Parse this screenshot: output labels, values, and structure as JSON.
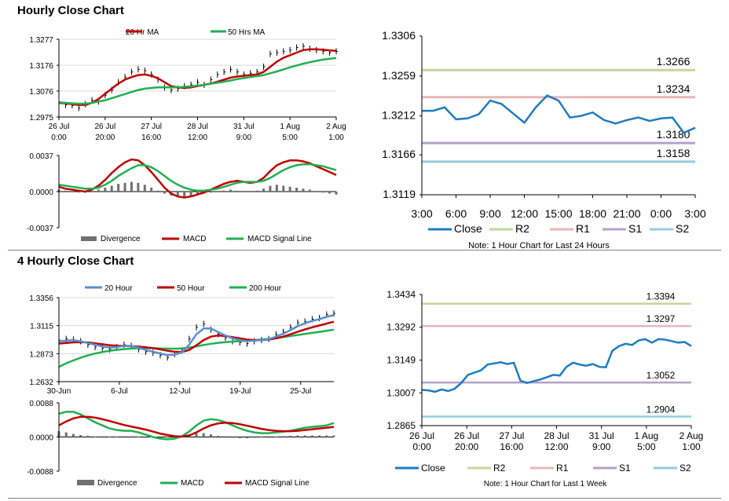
{
  "sections": {
    "hourly_title": "Hourly Close Chart",
    "four_hourly_title": "4 Hourly Close Chart"
  },
  "colors": {
    "price": "#000000",
    "ma_red": "#c00000",
    "ma_green": "#20b050",
    "ma_blue": "#5a8fd0",
    "close_line": "#1f7bbf",
    "r2": "#c3d69b",
    "r1": "#e6b8b7",
    "s1": "#b3a2c7",
    "s2": "#93cddd",
    "divergence": "#707070",
    "grid": "#d9d9d9"
  },
  "chart_data": [
    {
      "id": "hourly_price",
      "type": "line",
      "y_ticks": [
        "1.3277",
        "1.3176",
        "1.3076",
        "1.2975"
      ],
      "ylim": [
        1.2975,
        1.3277
      ],
      "x_labels": [
        [
          "26 Jul",
          "0:00"
        ],
        [
          "26 Jul",
          "20:00"
        ],
        [
          "27 Jul",
          "16:00"
        ],
        [
          "28 Jul",
          "12:00"
        ],
        [
          "31 Jul",
          "9:00"
        ],
        [
          "1 Aug",
          "5:00"
        ],
        [
          "2 Aug",
          "1:00"
        ]
      ],
      "legend": [
        "20 Hr MA",
        "50 Hrs MA"
      ],
      "series": [
        {
          "name": "Price",
          "values": [
            1.303,
            1.3022,
            1.302,
            1.301,
            1.3025,
            1.304,
            1.3035,
            1.306,
            1.308,
            1.311,
            1.313,
            1.315,
            1.316,
            1.3155,
            1.314,
            1.312,
            1.309,
            1.308,
            1.3085,
            1.3095,
            1.31,
            1.311,
            1.31,
            1.312,
            1.314,
            1.315,
            1.316,
            1.315,
            1.314,
            1.3145,
            1.315,
            1.317,
            1.322,
            1.3225,
            1.323,
            1.3235,
            1.3245,
            1.325,
            1.324,
            1.3235,
            1.323,
            1.3225,
            1.323
          ]
        },
        {
          "name": "20 Hr MA",
          "values": [
            1.303,
            1.3028,
            1.3025,
            1.3022,
            1.3022,
            1.303,
            1.3045,
            1.3065,
            1.3085,
            1.3105,
            1.312,
            1.313,
            1.3138,
            1.314,
            1.3135,
            1.3125,
            1.311,
            1.3095,
            1.309,
            1.3088,
            1.309,
            1.3095,
            1.31,
            1.3105,
            1.3112,
            1.312,
            1.3128,
            1.3132,
            1.3135,
            1.3138,
            1.314,
            1.315,
            1.317,
            1.319,
            1.3205,
            1.3215,
            1.3225,
            1.3235,
            1.3238,
            1.3238,
            1.3236,
            1.3234,
            1.3232
          ]
        },
        {
          "name": "50 Hrs MA",
          "values": [
            1.3032,
            1.303,
            1.3028,
            1.3027,
            1.3027,
            1.303,
            1.3035,
            1.304,
            1.3048,
            1.3056,
            1.3064,
            1.3072,
            1.308,
            1.3085,
            1.3088,
            1.309,
            1.309,
            1.309,
            1.309,
            1.3092,
            1.3094,
            1.3097,
            1.31,
            1.3104,
            1.3108,
            1.3112,
            1.3117,
            1.3122,
            1.3126,
            1.313,
            1.3134,
            1.3138,
            1.3145,
            1.3152,
            1.316,
            1.3168,
            1.3175,
            1.3182,
            1.3188,
            1.3193,
            1.3198,
            1.3201,
            1.3204
          ]
        }
      ]
    },
    {
      "id": "hourly_macd",
      "type": "line",
      "y_ticks": [
        "0.0037",
        "0.0000",
        "-0.0037"
      ],
      "ylim": [
        -0.0037,
        0.0037
      ],
      "legend": [
        "Divergence",
        "MACD",
        "MACD Signal Line"
      ],
      "series": [
        {
          "name": "Divergence",
          "values": [
            0.0002,
            0.0001,
            0.0,
            -0.0001,
            -0.0001,
            0.0,
            0.0002,
            0.0004,
            0.0006,
            0.0008,
            0.0009,
            0.001,
            0.0009,
            0.0007,
            0.0004,
            0.0001,
            -0.0002,
            -0.0004,
            -0.0005,
            -0.0005,
            -0.0004,
            -0.0003,
            -0.0002,
            -0.0001,
            0.0,
            0.0001,
            0.0002,
            0.0001,
            0.0,
            0.0,
            0.0001,
            0.0003,
            0.0006,
            0.0007,
            0.0006,
            0.0005,
            0.0004,
            0.0003,
            0.0002,
            0.0,
            -0.0001,
            -0.0002,
            -0.0003
          ]
        },
        {
          "name": "MACD",
          "values": [
            0.0005,
            0.0003,
            0.0002,
            0.0001,
            0.0,
            0.0002,
            0.0006,
            0.0012,
            0.0019,
            0.0025,
            0.003,
            0.0033,
            0.0032,
            0.0027,
            0.002,
            0.0012,
            0.0004,
            -0.0002,
            -0.0005,
            -0.0006,
            -0.0005,
            -0.0003,
            -0.0001,
            0.0002,
            0.0005,
            0.0008,
            0.001,
            0.0011,
            0.001,
            0.0009,
            0.001,
            0.0014,
            0.0021,
            0.0027,
            0.003,
            0.0032,
            0.0032,
            0.0031,
            0.0029,
            0.0026,
            0.0023,
            0.002,
            0.0017
          ]
        },
        {
          "name": "MACD Signal Line",
          "values": [
            0.0007,
            0.0006,
            0.0005,
            0.0004,
            0.0003,
            0.0003,
            0.0004,
            0.0007,
            0.0011,
            0.0016,
            0.002,
            0.0024,
            0.0027,
            0.0027,
            0.0025,
            0.0021,
            0.0016,
            0.0011,
            0.0007,
            0.0004,
            0.0002,
            0.0001,
            0.0001,
            0.0002,
            0.0003,
            0.0005,
            0.0007,
            0.0009,
            0.001,
            0.001,
            0.001,
            0.0011,
            0.0014,
            0.0018,
            0.0022,
            0.0025,
            0.0027,
            0.0028,
            0.0028,
            0.0027,
            0.0026,
            0.0024,
            0.0022
          ]
        }
      ]
    },
    {
      "id": "hourly_levels",
      "type": "line",
      "y_ticks": [
        "1.3306",
        "1.3259",
        "1.3212",
        "1.3166",
        "1.3119"
      ],
      "ylim": [
        1.3119,
        1.3306
      ],
      "x_labels": [
        "3:00",
        "6:00",
        "9:00",
        "12:00",
        "15:00",
        "18:00",
        "21:00",
        "0:00",
        "3:00"
      ],
      "legend": [
        "Close",
        "R2",
        "R1",
        "S1",
        "S2"
      ],
      "note": "Note: 1 Hour Chart for Last 24 Hours",
      "levels": [
        {
          "name": "R2",
          "value": 1.3266,
          "label": "1.3266"
        },
        {
          "name": "R1",
          "value": 1.3234,
          "label": "1.3234"
        },
        {
          "name": "S1",
          "value": 1.318,
          "label": "1.3180"
        },
        {
          "name": "S2",
          "value": 1.3158,
          "label": "1.3158"
        }
      ],
      "series": [
        {
          "name": "Close",
          "values": [
            1.3218,
            1.3218,
            1.3222,
            1.3208,
            1.3209,
            1.3214,
            1.323,
            1.3226,
            1.3215,
            1.3204,
            1.3222,
            1.3236,
            1.323,
            1.321,
            1.3212,
            1.3216,
            1.3207,
            1.3203,
            1.3207,
            1.321,
            1.3206,
            1.3209,
            1.321,
            1.3192,
            1.3198
          ]
        }
      ]
    },
    {
      "id": "four_hourly_price",
      "type": "line",
      "y_ticks": [
        "1.3356",
        "1.3115",
        "1.2873",
        "1.2632"
      ],
      "ylim": [
        1.2632,
        1.3356
      ],
      "x_labels": [
        "30-Jun",
        "6-Jul",
        "12-Jul",
        "19-Jul",
        "25-Jul"
      ],
      "legend": [
        "20 Hour",
        "50 Hour",
        "200 Hour"
      ],
      "series": [
        {
          "name": "Price",
          "values": [
            1.299,
            1.3,
            1.2995,
            1.298,
            1.295,
            1.293,
            1.292,
            1.291,
            1.293,
            1.295,
            1.294,
            1.291,
            1.289,
            1.288,
            1.286,
            1.284,
            1.287,
            1.29,
            1.3,
            1.31,
            1.313,
            1.308,
            1.304,
            1.301,
            1.298,
            1.297,
            1.296,
            1.298,
            1.299,
            1.3,
            1.304,
            1.306,
            1.31,
            1.314,
            1.315,
            1.317,
            1.318,
            1.321,
            1.322
          ]
        },
        {
          "name": "20 Hour",
          "values": [
            1.298,
            1.2985,
            1.299,
            1.298,
            1.2965,
            1.295,
            1.2935,
            1.2925,
            1.293,
            1.294,
            1.294,
            1.2925,
            1.2905,
            1.289,
            1.2875,
            1.286,
            1.2865,
            1.2885,
            1.295,
            1.304,
            1.309,
            1.309,
            1.306,
            1.303,
            1.3005,
            1.299,
            1.298,
            1.2985,
            1.299,
            1.2998,
            1.302,
            1.3045,
            1.3075,
            1.311,
            1.3135,
            1.3155,
            1.317,
            1.319,
            1.3205
          ]
        },
        {
          "name": "50 Hour",
          "values": [
            1.296,
            1.2965,
            1.297,
            1.2972,
            1.297,
            1.2962,
            1.2954,
            1.2946,
            1.2942,
            1.294,
            1.2938,
            1.2934,
            1.2928,
            1.292,
            1.291,
            1.2898,
            1.289,
            1.2888,
            1.2905,
            1.2945,
            1.299,
            1.302,
            1.303,
            1.3025,
            1.3015,
            1.3005,
            1.2995,
            1.299,
            1.299,
            1.2995,
            1.3005,
            1.302,
            1.304,
            1.3062,
            1.3082,
            1.31,
            1.3116,
            1.3132,
            1.3148
          ]
        },
        {
          "name": "200 Hour",
          "values": [
            1.276,
            1.279,
            1.2815,
            1.2838,
            1.2858,
            1.2874,
            1.2887,
            1.2898,
            1.2906,
            1.2912,
            1.2917,
            1.292,
            1.2921,
            1.292,
            1.2918,
            1.2916,
            1.2916,
            1.2918,
            1.2925,
            1.2936,
            1.2948,
            1.2958,
            1.2966,
            1.2972,
            1.2977,
            1.2981,
            1.2985,
            1.299,
            1.2995,
            1.3001,
            1.3008,
            1.3016,
            1.3025,
            1.3034,
            1.3043,
            1.3052,
            1.3061,
            1.307,
            1.308
          ]
        }
      ]
    },
    {
      "id": "four_hourly_macd",
      "type": "line",
      "y_ticks": [
        "0.0088",
        "0.0000",
        "-0.0088"
      ],
      "ylim": [
        -0.0088,
        0.0088
      ],
      "legend": [
        "Divergence",
        "MACD",
        "MACD Signal Line"
      ],
      "series": [
        {
          "name": "Divergence",
          "values": [
            0.0015,
            0.0012,
            0.0008,
            0.0005,
            0.0003,
            0.0001,
            0.0,
            -0.0001,
            -0.0001,
            0.0,
            0.0,
            -0.0001,
            -0.0002,
            -0.0002,
            -0.0002,
            -0.0001,
            0.0,
            0.0002,
            0.0006,
            0.001,
            0.001,
            0.0007,
            0.0003,
            0.0,
            -0.0002,
            -0.0003,
            -0.0003,
            -0.0002,
            -0.0001,
            0.0,
            0.0001,
            0.0002,
            0.0003,
            0.0004,
            0.0004,
            0.0004,
            0.0004,
            0.0004,
            0.0004
          ]
        },
        {
          "name": "MACD",
          "values": [
            0.006,
            0.0065,
            0.0065,
            0.0058,
            0.0048,
            0.0038,
            0.003,
            0.0022,
            0.0018,
            0.0016,
            0.0016,
            0.0012,
            0.0006,
            0.0,
            -0.0004,
            -0.0006,
            -0.0004,
            0.0002,
            0.0014,
            0.003,
            0.0042,
            0.0046,
            0.0044,
            0.0038,
            0.003,
            0.0022,
            0.0016,
            0.0012,
            0.001,
            0.001,
            0.0012,
            0.0014,
            0.0016,
            0.002,
            0.0024,
            0.0026,
            0.0028,
            0.003,
            0.0036
          ]
        },
        {
          "name": "MACD Signal Line",
          "values": [
            0.003,
            0.004,
            0.0048,
            0.0052,
            0.0052,
            0.005,
            0.0046,
            0.0041,
            0.0036,
            0.0031,
            0.0027,
            0.0023,
            0.0019,
            0.0014,
            0.0009,
            0.0005,
            0.0002,
            0.0001,
            0.0004,
            0.0012,
            0.0022,
            0.003,
            0.0035,
            0.0037,
            0.0036,
            0.0033,
            0.0029,
            0.0025,
            0.0021,
            0.0018,
            0.0016,
            0.0015,
            0.0015,
            0.0016,
            0.0018,
            0.002,
            0.0022,
            0.0024,
            0.0026
          ]
        }
      ]
    },
    {
      "id": "four_hourly_levels",
      "type": "line",
      "y_ticks": [
        "1.3434",
        "1.3292",
        "1.3149",
        "1.3007",
        "1.2865"
      ],
      "ylim": [
        1.2865,
        1.3434
      ],
      "x_labels": [
        [
          "26 Jul",
          "0:00"
        ],
        [
          "26 Jul",
          "20:00"
        ],
        [
          "27 Jul",
          "16:00"
        ],
        [
          "28 Jul",
          "12:00"
        ],
        [
          "31 Jul",
          "9:00"
        ],
        [
          "1 Aug",
          "5:00"
        ],
        [
          "2 Aug",
          "1:00"
        ]
      ],
      "legend": [
        "Close",
        "R2",
        "R1",
        "S1",
        "S2"
      ],
      "note": "Note: 1 Hour Chart for Last 1 Week",
      "levels": [
        {
          "name": "R2",
          "value": 1.3394,
          "label": "1.3394"
        },
        {
          "name": "R1",
          "value": 1.3297,
          "label": "1.3297"
        },
        {
          "name": "S1",
          "value": 1.3052,
          "label": "1.3052"
        },
        {
          "name": "S2",
          "value": 1.2904,
          "label": "1.2904"
        }
      ],
      "series": [
        {
          "name": "Close",
          "values": [
            1.302,
            1.3018,
            1.3012,
            1.3022,
            1.3015,
            1.3025,
            1.305,
            1.3085,
            1.3095,
            1.3105,
            1.313,
            1.3135,
            1.314,
            1.3132,
            1.3138,
            1.306,
            1.305,
            1.3058,
            1.3065,
            1.3075,
            1.3085,
            1.3082,
            1.312,
            1.3138,
            1.313,
            1.3125,
            1.3132,
            1.312,
            1.3118,
            1.319,
            1.321,
            1.322,
            1.3215,
            1.3235,
            1.324,
            1.3225,
            1.324,
            1.3238,
            1.3232,
            1.3225,
            1.3228,
            1.321
          ]
        }
      ]
    }
  ]
}
